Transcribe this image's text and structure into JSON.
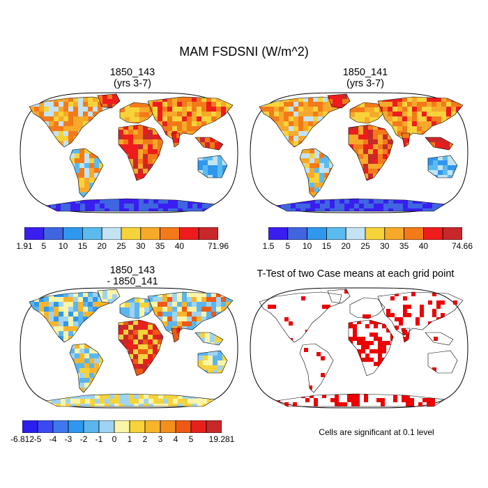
{
  "title": "MAM FSDSNI (W/m^2)",
  "panels": [
    {
      "title_line1": "1850_143",
      "title_line2": "(yrs 3-7)"
    },
    {
      "title_line1": "1850_141",
      "title_line2": "(yrs 3-7)"
    },
    {
      "title_line1": "1850_143",
      "title_line2": "- 1850_141"
    },
    {
      "title_line1": "T-Test of two Case means at each grid point",
      "title_line2": ""
    }
  ],
  "colorbars": [
    {
      "colors": [
        "#3a1ef0",
        "#3f66e0",
        "#2f97ee",
        "#5bbbee",
        "#c3e3f3",
        "#f7d33b",
        "#f7a92a",
        "#f47a19",
        "#ee1c1c",
        "#c8282a"
      ],
      "labels": [
        "1.91",
        "5",
        "10",
        "15",
        "20",
        "25",
        "30",
        "35",
        "40",
        "71.96"
      ]
    },
    {
      "colors": [
        "#3a1ef0",
        "#3f66e0",
        "#2f97ee",
        "#5bbbee",
        "#c3e3f3",
        "#f7d33b",
        "#f7a92a",
        "#f47a19",
        "#ee1c1c",
        "#c8282a"
      ],
      "labels": [
        "1.5",
        "5",
        "10",
        "15",
        "20",
        "25",
        "30",
        "35",
        "40",
        "74.66"
      ]
    },
    {
      "colors": [
        "#2b1ef0",
        "#3a4af2",
        "#3f78ee",
        "#2f97ee",
        "#5bb6ee",
        "#9fd3f2",
        "#fbf5a8",
        "#f7d33b",
        "#f7b52c",
        "#f4901e",
        "#ee5a14",
        "#e8201c",
        "#c8282a"
      ],
      "labels": [
        "-6.812",
        "-5",
        "-4",
        "-3",
        "-2",
        "-1",
        "0",
        "1",
        "2",
        "3",
        "4",
        "5",
        "19.281"
      ]
    }
  ],
  "significance_note": "Cells are significant at 0.1 level",
  "colors": {
    "land_warm": "#f47a19",
    "land_hot": "#ee1c1c",
    "land_cool": "#5bbbee",
    "antarctica": "#3a1ef0",
    "significant": "#ee0000"
  }
}
